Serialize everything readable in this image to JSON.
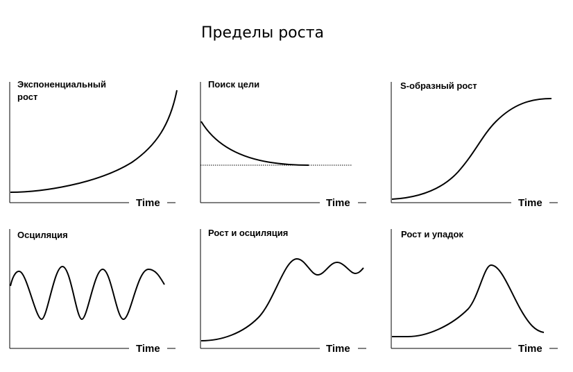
{
  "page": {
    "title": "Пределы роста"
  },
  "panels": [
    {
      "id": "exponential-growth",
      "title_lines": [
        "Экспоненциальный",
        "рост"
      ],
      "x_axis_label": "Time"
    },
    {
      "id": "goal-seeking",
      "title_lines": [
        "Поиск цели"
      ],
      "x_axis_label": "Time"
    },
    {
      "id": "s-shaped-growth",
      "title_lines": [
        "S-образный рост"
      ],
      "x_axis_label": "Time"
    },
    {
      "id": "oscillation",
      "title_lines": [
        "Осциляция"
      ],
      "x_axis_label": "Time"
    },
    {
      "id": "growth-and-oscillation",
      "title_lines": [
        "Рост и осциляция"
      ],
      "x_axis_label": "Time"
    },
    {
      "id": "growth-and-decline",
      "title_lines": [
        "Рост и упадок"
      ],
      "x_axis_label": "Time"
    }
  ],
  "colors": {
    "background": "#ffffff",
    "line": "#000000"
  }
}
